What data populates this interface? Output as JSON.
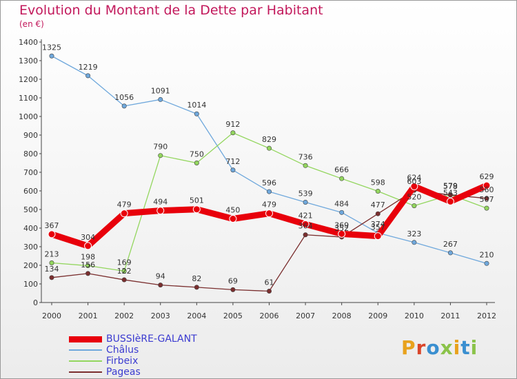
{
  "header": {
    "title": "Evolution du Montant de la Dette par Habitant",
    "subtitle": "(en €)"
  },
  "brand": {
    "letters": [
      "P",
      "r",
      "o",
      "x",
      "i",
      "t",
      "i"
    ],
    "colors": [
      "#e8a21d",
      "#d9452a",
      "#3a8fd0",
      "#8bc34a",
      "#e8a21d",
      "#3a8fd0",
      "#8bc34a"
    ]
  },
  "chart_data": {
    "type": "line",
    "title": "Evolution du Montant de la Dette par Habitant",
    "ylabel": "(en €)",
    "ylim": [
      0,
      1400
    ],
    "yticks": [
      0,
      100,
      200,
      300,
      400,
      500,
      600,
      700,
      800,
      900,
      1000,
      1100,
      1200,
      1300,
      1400
    ],
    "grid": false,
    "legend_position": "bottom-left",
    "x": [
      "2000",
      "2001",
      "2002",
      "2003",
      "2004",
      "2005",
      "2006",
      "2007",
      "2008",
      "2009",
      "2010",
      "2011",
      "2012"
    ],
    "series": [
      {
        "name": "BUSSIèRE-GALANT",
        "color": "#e8000b",
        "highlight": true,
        "values": [
          367,
          304,
          479,
          494,
          501,
          450,
          479,
          421,
          369,
          357,
          624,
          543,
          629
        ],
        "labels": [
          "367",
          "304",
          "479",
          "494",
          "501",
          "450",
          "479",
          "421",
          "369",
          "357",
          "624",
          "543",
          "629"
        ]
      },
      {
        "name": "Châlus",
        "color": "#6fa8dc",
        "highlight": false,
        "values": [
          1325,
          1219,
          1056,
          1091,
          1014,
          712,
          596,
          539,
          484,
          374,
          323,
          267,
          210
        ],
        "labels": [
          "1325",
          "1219",
          "1056",
          "1091",
          "1014",
          "712",
          "596",
          "539",
          "484",
          "374",
          "323",
          "267",
          "210"
        ]
      },
      {
        "name": "Firbeix",
        "color": "#93d65e",
        "highlight": false,
        "values": [
          213,
          198,
          169,
          790,
          750,
          912,
          829,
          736,
          666,
          598,
          520,
          579,
          507
        ],
        "labels": [
          "213",
          "198",
          "169",
          "790",
          "750",
          "912",
          "829",
          "736",
          "666",
          "598",
          "520",
          "579",
          "507"
        ]
      },
      {
        "name": "Pageas",
        "color": "#7a2e2e",
        "highlight": false,
        "values": [
          134,
          156,
          122,
          94,
          82,
          69,
          61,
          364,
          352,
          477,
          603,
          578,
          560
        ],
        "labels": [
          "134",
          "156",
          "122",
          "94",
          "82",
          "69",
          "61",
          "364",
          "352",
          "477",
          "603",
          "578",
          "560"
        ]
      }
    ]
  }
}
